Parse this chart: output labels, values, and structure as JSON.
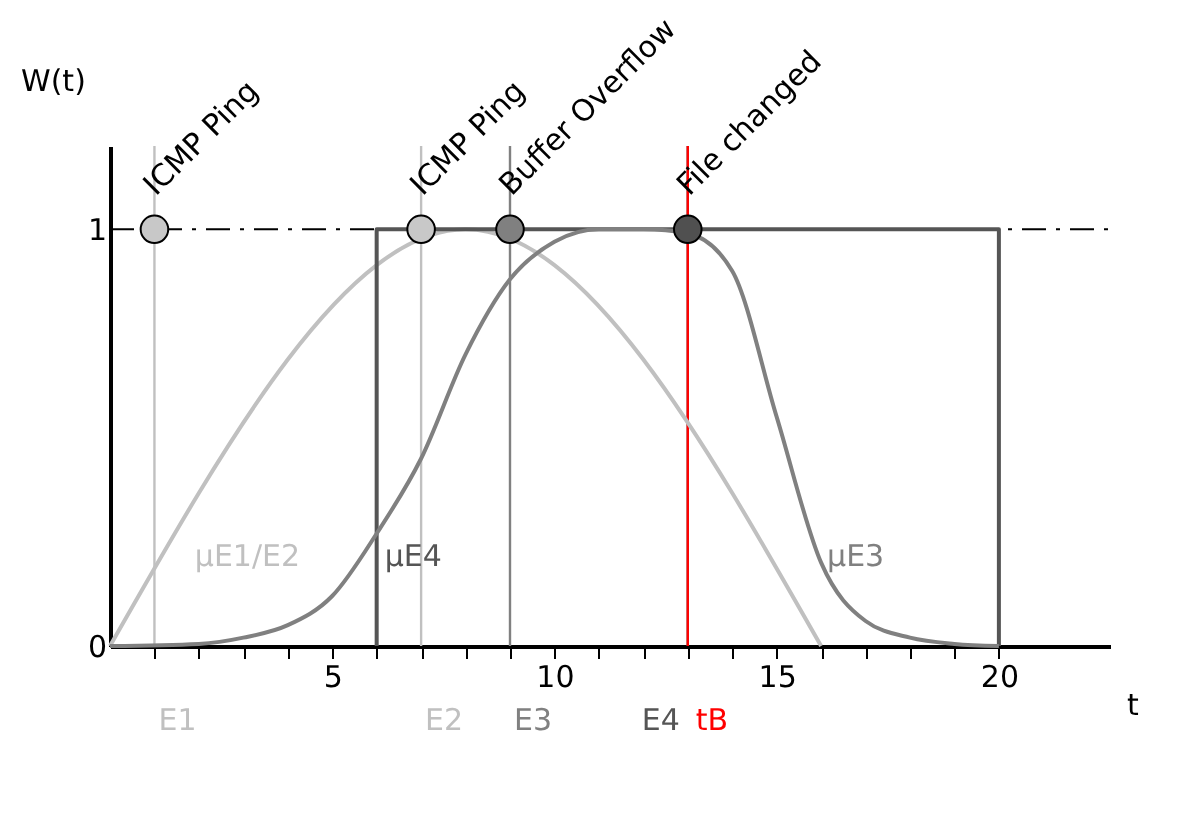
{
  "chart_data": {
    "type": "line",
    "xlabel": "t",
    "ylabel": "W(t)",
    "xlim": [
      0,
      22.5
    ],
    "ylim": [
      0,
      1.2
    ],
    "xticks": [
      {
        "value": 1,
        "label": null
      },
      {
        "value": 2,
        "label": null
      },
      {
        "value": 3,
        "label": null
      },
      {
        "value": 4,
        "label": null
      },
      5,
      {
        "value": 6,
        "label": null
      },
      {
        "value": 7,
        "label": null
      },
      {
        "value": 8,
        "label": null
      },
      {
        "value": 9,
        "label": null
      },
      10,
      {
        "value": 11,
        "label": null
      },
      {
        "value": 12,
        "label": null
      },
      {
        "value": 13,
        "label": null
      },
      {
        "value": 14,
        "label": null
      },
      15,
      {
        "value": 16,
        "label": null
      },
      {
        "value": 17,
        "label": null
      },
      {
        "value": 18,
        "label": null
      },
      {
        "value": 19,
        "label": null
      },
      20
    ],
    "yticks": [
      0,
      1
    ],
    "grid": false,
    "legend": false,
    "series": [
      {
        "name": "µE1/E2",
        "color": "#c0c0c0",
        "x": [
          0,
          8,
          16
        ],
        "values": [
          0,
          1,
          0
        ]
      },
      {
        "name": "µE4",
        "color": "#555555",
        "x": [
          6,
          6,
          20,
          20
        ],
        "values": [
          0,
          1,
          1,
          0
        ]
      },
      {
        "name": "µE3",
        "color": "#808080",
        "x": [
          0,
          2,
          3,
          4,
          5,
          6,
          7,
          8,
          9,
          10,
          11,
          12,
          13,
          14,
          15,
          16,
          17,
          18,
          19,
          20
        ],
        "values": [
          0,
          0.005,
          0.02,
          0.05,
          0.12,
          0.27,
          0.45,
          0.7,
          0.88,
          0.97,
          1,
          1,
          0.99,
          0.9,
          0.55,
          0.2,
          0.06,
          0.02,
          0.005,
          0
        ]
      },
      {
        "type": "scatter",
        "marker": "circle",
        "x": [
          1,
          7,
          9,
          13
        ],
        "values": [
          1,
          1,
          1,
          1
        ],
        "colors": [
          "#c8c8c8",
          "#c8c8c8",
          "#808080",
          "#505050"
        ]
      }
    ],
    "ref_lines": [
      {
        "axis": "y",
        "value": 1,
        "color": "#000000",
        "line_style": "dashed"
      },
      {
        "axis": "x",
        "value": 1,
        "label": "E1",
        "color": "#c0c0c0"
      },
      {
        "axis": "x",
        "value": 7,
        "label": "E2",
        "color": "#c0c0c0"
      },
      {
        "axis": "x",
        "value": 9,
        "label": "E3",
        "color": "#808080"
      },
      {
        "axis": "x",
        "value": 13,
        "label": "E4",
        "color": "#555555"
      },
      {
        "axis": "x",
        "value": 13,
        "label": "tB",
        "color": "#ff0000"
      }
    ],
    "annotations": [
      {
        "text": "ICMP Ping",
        "x": 1,
        "y": 1
      },
      {
        "text": "ICMP Ping",
        "x": 7,
        "y": 1
      },
      {
        "text": "Buffer Overflow",
        "x": 9,
        "y": 1
      },
      {
        "text": "File changed",
        "x": 13,
        "y": 1
      }
    ]
  }
}
